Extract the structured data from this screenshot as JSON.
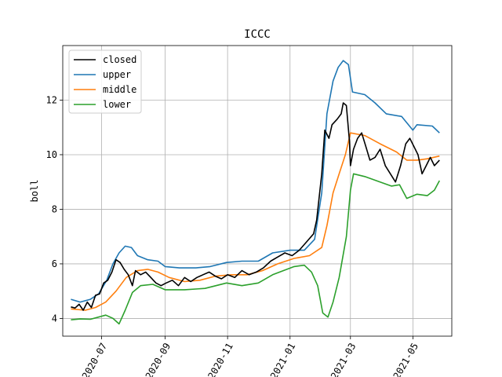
{
  "chart_data": {
    "type": "line",
    "title": "ICCC",
    "xlabel": "",
    "ylabel": "boll",
    "x_range": [
      "2020-05-24",
      "2021-06-08"
    ],
    "ylim": [
      3.35,
      14.0
    ],
    "grid": true,
    "legend_position": "top-left",
    "x_ticks": [
      {
        "date": "2020-07-01",
        "label": "2020-07"
      },
      {
        "date": "2020-09-01",
        "label": "2020-09"
      },
      {
        "date": "2020-11-01",
        "label": "2020-11"
      },
      {
        "date": "2021-01-01",
        "label": "2021-01"
      },
      {
        "date": "2021-03-01",
        "label": "2021-03"
      },
      {
        "date": "2021-05-01",
        "label": "2021-05"
      }
    ],
    "y_ticks": [
      4,
      6,
      8,
      10,
      12
    ],
    "series": [
      {
        "name": "closed",
        "color": "#000000",
        "points": [
          [
            "2020-06-01",
            4.42
          ],
          [
            "2020-06-05",
            4.38
          ],
          [
            "2020-06-09",
            4.52
          ],
          [
            "2020-06-13",
            4.3
          ],
          [
            "2020-06-17",
            4.6
          ],
          [
            "2020-06-21",
            4.4
          ],
          [
            "2020-06-25",
            4.85
          ],
          [
            "2020-06-29",
            4.9
          ],
          [
            "2020-07-03",
            5.3
          ],
          [
            "2020-07-07",
            5.4
          ],
          [
            "2020-07-11",
            5.7
          ],
          [
            "2020-07-15",
            6.15
          ],
          [
            "2020-07-19",
            6.05
          ],
          [
            "2020-07-23",
            5.8
          ],
          [
            "2020-07-27",
            5.6
          ],
          [
            "2020-07-31",
            5.2
          ],
          [
            "2020-08-03",
            5.75
          ],
          [
            "2020-08-08",
            5.6
          ],
          [
            "2020-08-13",
            5.7
          ],
          [
            "2020-08-18",
            5.5
          ],
          [
            "2020-08-23",
            5.3
          ],
          [
            "2020-08-28",
            5.2
          ],
          [
            "2020-09-02",
            5.3
          ],
          [
            "2020-09-08",
            5.4
          ],
          [
            "2020-09-14",
            5.2
          ],
          [
            "2020-09-20",
            5.5
          ],
          [
            "2020-09-26",
            5.35
          ],
          [
            "2020-10-02",
            5.5
          ],
          [
            "2020-10-08",
            5.6
          ],
          [
            "2020-10-14",
            5.7
          ],
          [
            "2020-10-20",
            5.55
          ],
          [
            "2020-10-26",
            5.45
          ],
          [
            "2020-11-01",
            5.6
          ],
          [
            "2020-11-08",
            5.5
          ],
          [
            "2020-11-15",
            5.75
          ],
          [
            "2020-11-22",
            5.6
          ],
          [
            "2020-11-29",
            5.7
          ],
          [
            "2020-12-06",
            5.85
          ],
          [
            "2020-12-13",
            6.1
          ],
          [
            "2020-12-20",
            6.25
          ],
          [
            "2020-12-27",
            6.4
          ],
          [
            "2021-01-03",
            6.3
          ],
          [
            "2021-01-10",
            6.5
          ],
          [
            "2021-01-17",
            6.8
          ],
          [
            "2021-01-24",
            7.1
          ],
          [
            "2021-01-27",
            7.6
          ],
          [
            "2021-02-01",
            9.3
          ],
          [
            "2021-02-04",
            10.9
          ],
          [
            "2021-02-08",
            10.6
          ],
          [
            "2021-02-11",
            11.1
          ],
          [
            "2021-02-16",
            11.3
          ],
          [
            "2021-02-20",
            11.5
          ],
          [
            "2021-02-22",
            11.9
          ],
          [
            "2021-02-25",
            11.8
          ],
          [
            "2021-02-28",
            10.5
          ],
          [
            "2021-03-01",
            9.6
          ],
          [
            "2021-03-04",
            10.2
          ],
          [
            "2021-03-08",
            10.6
          ],
          [
            "2021-03-12",
            10.8
          ],
          [
            "2021-03-16",
            10.3
          ],
          [
            "2021-03-20",
            9.8
          ],
          [
            "2021-03-25",
            9.9
          ],
          [
            "2021-03-30",
            10.2
          ],
          [
            "2021-04-04",
            9.6
          ],
          [
            "2021-04-09",
            9.3
          ],
          [
            "2021-04-14",
            9.0
          ],
          [
            "2021-04-19",
            9.6
          ],
          [
            "2021-04-24",
            10.4
          ],
          [
            "2021-04-28",
            10.6
          ],
          [
            "2021-05-02",
            10.3
          ],
          [
            "2021-05-06",
            10.0
          ],
          [
            "2021-05-10",
            9.3
          ],
          [
            "2021-05-14",
            9.6
          ],
          [
            "2021-05-18",
            9.9
          ],
          [
            "2021-05-22",
            9.6
          ],
          [
            "2021-05-27",
            9.8
          ]
        ]
      },
      {
        "name": "upper",
        "color": "#1f77b4",
        "points": [
          [
            "2020-06-01",
            4.7
          ],
          [
            "2020-06-10",
            4.6
          ],
          [
            "2020-06-20",
            4.7
          ],
          [
            "2020-06-28",
            4.9
          ],
          [
            "2020-07-06",
            5.4
          ],
          [
            "2020-07-12",
            6.0
          ],
          [
            "2020-07-18",
            6.4
          ],
          [
            "2020-07-24",
            6.65
          ],
          [
            "2020-07-30",
            6.6
          ],
          [
            "2020-08-05",
            6.3
          ],
          [
            "2020-08-15",
            6.15
          ],
          [
            "2020-08-25",
            6.1
          ],
          [
            "2020-09-01",
            5.9
          ],
          [
            "2020-09-15",
            5.85
          ],
          [
            "2020-10-01",
            5.85
          ],
          [
            "2020-10-15",
            5.9
          ],
          [
            "2020-10-31",
            6.05
          ],
          [
            "2020-11-15",
            6.1
          ],
          [
            "2020-12-01",
            6.1
          ],
          [
            "2020-12-15",
            6.4
          ],
          [
            "2021-01-01",
            6.5
          ],
          [
            "2021-01-15",
            6.5
          ],
          [
            "2021-01-25",
            6.9
          ],
          [
            "2021-02-01",
            8.6
          ],
          [
            "2021-02-06",
            11.5
          ],
          [
            "2021-02-12",
            12.7
          ],
          [
            "2021-02-17",
            13.2
          ],
          [
            "2021-02-22",
            13.45
          ],
          [
            "2021-02-27",
            13.3
          ],
          [
            "2021-03-03",
            12.3
          ],
          [
            "2021-03-15",
            12.2
          ],
          [
            "2021-03-25",
            11.9
          ],
          [
            "2021-04-05",
            11.5
          ],
          [
            "2021-04-20",
            11.4
          ],
          [
            "2021-05-01",
            10.9
          ],
          [
            "2021-05-05",
            11.1
          ],
          [
            "2021-05-20",
            11.05
          ],
          [
            "2021-05-27",
            10.8
          ]
        ]
      },
      {
        "name": "middle",
        "color": "#ff7f0e",
        "points": [
          [
            "2020-06-01",
            4.35
          ],
          [
            "2020-06-15",
            4.3
          ],
          [
            "2020-06-25",
            4.4
          ],
          [
            "2020-07-05",
            4.6
          ],
          [
            "2020-07-15",
            5.0
          ],
          [
            "2020-07-25",
            5.5
          ],
          [
            "2020-08-05",
            5.75
          ],
          [
            "2020-08-15",
            5.8
          ],
          [
            "2020-08-25",
            5.7
          ],
          [
            "2020-09-05",
            5.5
          ],
          [
            "2020-09-20",
            5.35
          ],
          [
            "2020-10-05",
            5.4
          ],
          [
            "2020-10-20",
            5.55
          ],
          [
            "2020-11-05",
            5.6
          ],
          [
            "2020-11-20",
            5.6
          ],
          [
            "2020-12-05",
            5.75
          ],
          [
            "2020-12-20",
            6.0
          ],
          [
            "2021-01-05",
            6.2
          ],
          [
            "2021-01-20",
            6.3
          ],
          [
            "2021-02-01",
            6.6
          ],
          [
            "2021-02-06",
            7.4
          ],
          [
            "2021-02-12",
            8.6
          ],
          [
            "2021-02-18",
            9.3
          ],
          [
            "2021-02-24",
            10.0
          ],
          [
            "2021-03-01",
            10.8
          ],
          [
            "2021-03-15",
            10.7
          ],
          [
            "2021-03-30",
            10.4
          ],
          [
            "2021-04-15",
            10.1
          ],
          [
            "2021-04-25",
            9.8
          ],
          [
            "2021-05-05",
            9.8
          ],
          [
            "2021-05-15",
            9.85
          ],
          [
            "2021-05-27",
            9.95
          ]
        ]
      },
      {
        "name": "lower",
        "color": "#2ca02c",
        "points": [
          [
            "2020-06-01",
            3.95
          ],
          [
            "2020-06-10",
            3.98
          ],
          [
            "2020-06-20",
            3.97
          ],
          [
            "2020-06-28",
            4.05
          ],
          [
            "2020-07-05",
            4.12
          ],
          [
            "2020-07-12",
            4.0
          ],
          [
            "2020-07-18",
            3.8
          ],
          [
            "2020-07-24",
            4.3
          ],
          [
            "2020-07-31",
            4.95
          ],
          [
            "2020-08-08",
            5.2
          ],
          [
            "2020-08-20",
            5.25
          ],
          [
            "2020-09-01",
            5.05
          ],
          [
            "2020-09-20",
            5.05
          ],
          [
            "2020-10-10",
            5.1
          ],
          [
            "2020-10-31",
            5.3
          ],
          [
            "2020-11-15",
            5.2
          ],
          [
            "2020-12-01",
            5.3
          ],
          [
            "2020-12-15",
            5.6
          ],
          [
            "2021-01-05",
            5.9
          ],
          [
            "2021-01-15",
            5.95
          ],
          [
            "2021-01-22",
            5.7
          ],
          [
            "2021-01-28",
            5.2
          ],
          [
            "2021-02-02",
            4.2
          ],
          [
            "2021-02-07",
            4.05
          ],
          [
            "2021-02-12",
            4.6
          ],
          [
            "2021-02-18",
            5.5
          ],
          [
            "2021-02-25",
            7.0
          ],
          [
            "2021-03-01",
            8.7
          ],
          [
            "2021-03-04",
            9.3
          ],
          [
            "2021-03-15",
            9.2
          ],
          [
            "2021-03-30",
            9.0
          ],
          [
            "2021-04-10",
            8.85
          ],
          [
            "2021-04-18",
            8.9
          ],
          [
            "2021-04-25",
            8.4
          ],
          [
            "2021-05-05",
            8.55
          ],
          [
            "2021-05-15",
            8.5
          ],
          [
            "2021-05-22",
            8.7
          ],
          [
            "2021-05-27",
            9.05
          ]
        ]
      }
    ]
  }
}
